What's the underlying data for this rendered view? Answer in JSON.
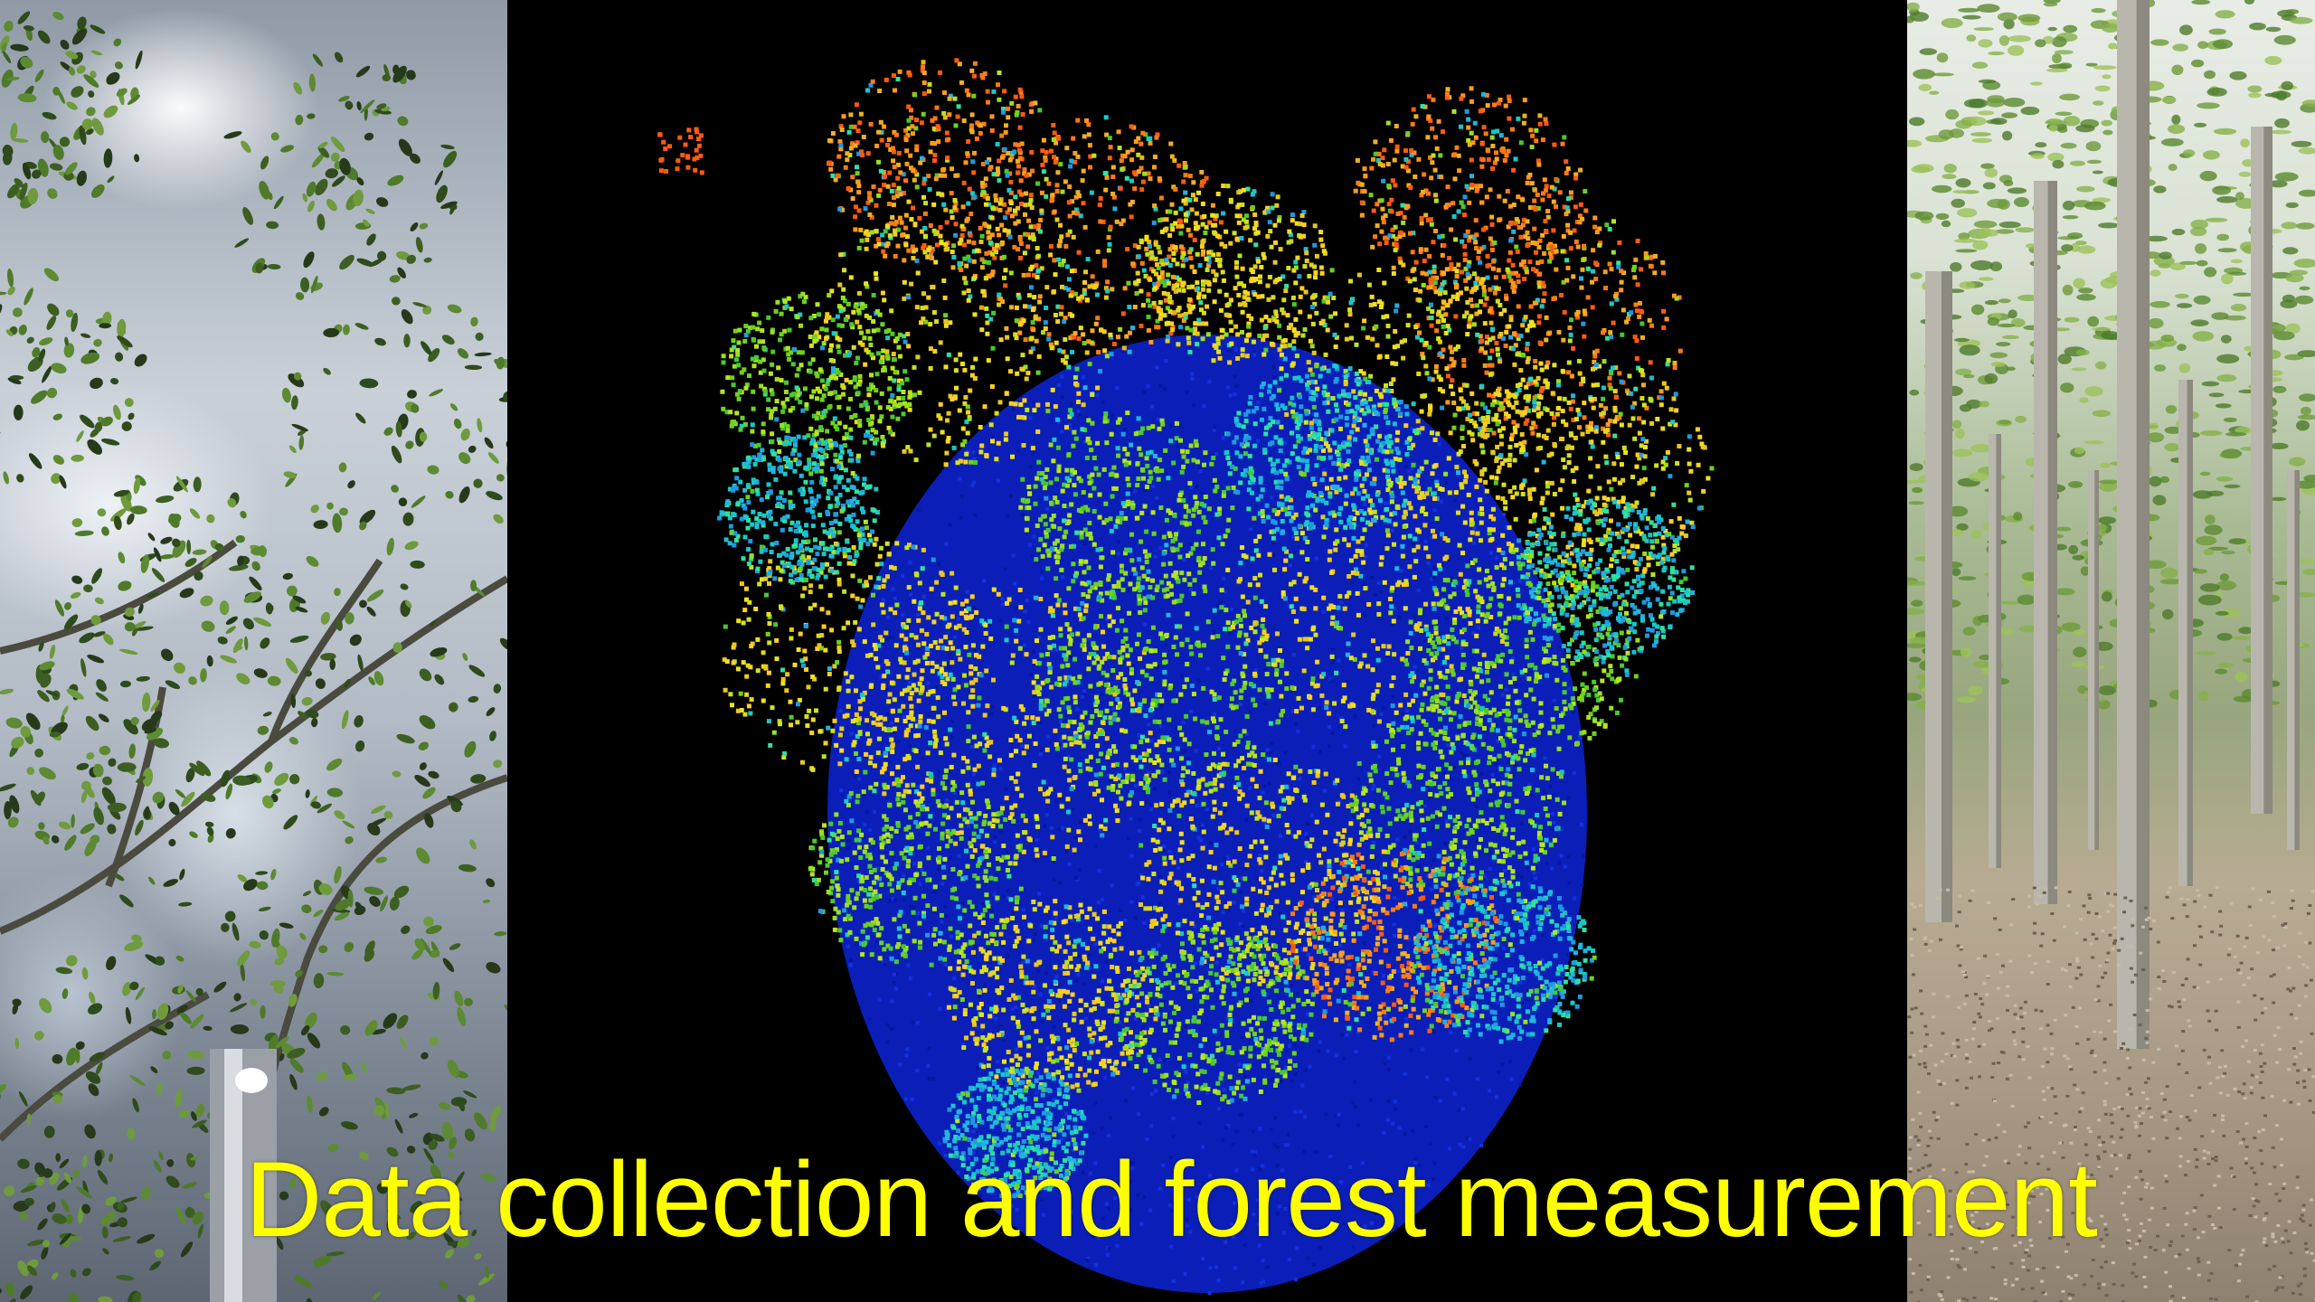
{
  "slide": {
    "title": "Data collection and forest measurement"
  },
  "panels": {
    "left": {
      "icon": "tree-canopy-photo"
    },
    "middle": {
      "icon": "lidar-point-cloud"
    },
    "right": {
      "icon": "forest-stand-photo"
    }
  },
  "colors": {
    "title": "#ffff00",
    "ground_points": "#0a1ed0",
    "low_points": "#19c8d2",
    "mid_points": "#8ee01e",
    "high_points": "#f0e61e",
    "top_points": "#ff6a10"
  }
}
